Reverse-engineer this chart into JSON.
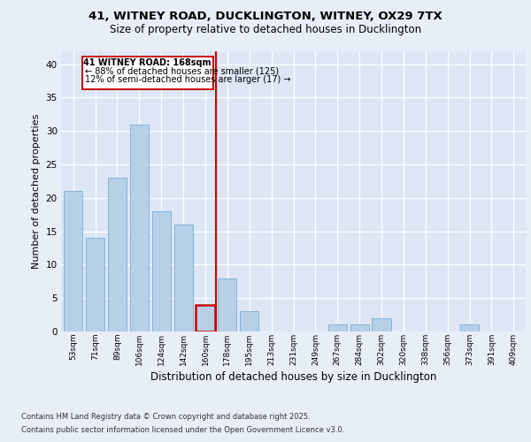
{
  "title1": "41, WITNEY ROAD, DUCKLINGTON, WITNEY, OX29 7TX",
  "title2": "Size of property relative to detached houses in Ducklington",
  "xlabel": "Distribution of detached houses by size in Ducklington",
  "ylabel": "Number of detached properties",
  "categories": [
    "53sqm",
    "71sqm",
    "89sqm",
    "106sqm",
    "124sqm",
    "142sqm",
    "160sqm",
    "178sqm",
    "195sqm",
    "213sqm",
    "231sqm",
    "249sqm",
    "267sqm",
    "284sqm",
    "302sqm",
    "320sqm",
    "338sqm",
    "356sqm",
    "373sqm",
    "391sqm",
    "409sqm"
  ],
  "values": [
    21,
    14,
    23,
    31,
    18,
    16,
    4,
    8,
    3,
    0,
    0,
    0,
    1,
    1,
    2,
    0,
    0,
    0,
    1,
    0,
    0
  ],
  "bar_color": "#b8cfe8",
  "bar_edge_color": "#7aadd4",
  "highlight_index": 6,
  "highlight_color": "#cc0000",
  "vline_x": 6.5,
  "annotation_title": "41 WITNEY ROAD: 168sqm",
  "annotation_line1": "← 88% of detached houses are smaller (125)",
  "annotation_line2": "12% of semi-detached houses are larger (17) →",
  "ylim": [
    0,
    42
  ],
  "yticks": [
    0,
    5,
    10,
    15,
    20,
    25,
    30,
    35,
    40
  ],
  "footer1": "Contains HM Land Registry data © Crown copyright and database right 2025.",
  "footer2": "Contains public sector information licensed under the Open Government Licence v3.0.",
  "bg_color": "#e8eef8",
  "plot_bg_color": "#dce6f5"
}
